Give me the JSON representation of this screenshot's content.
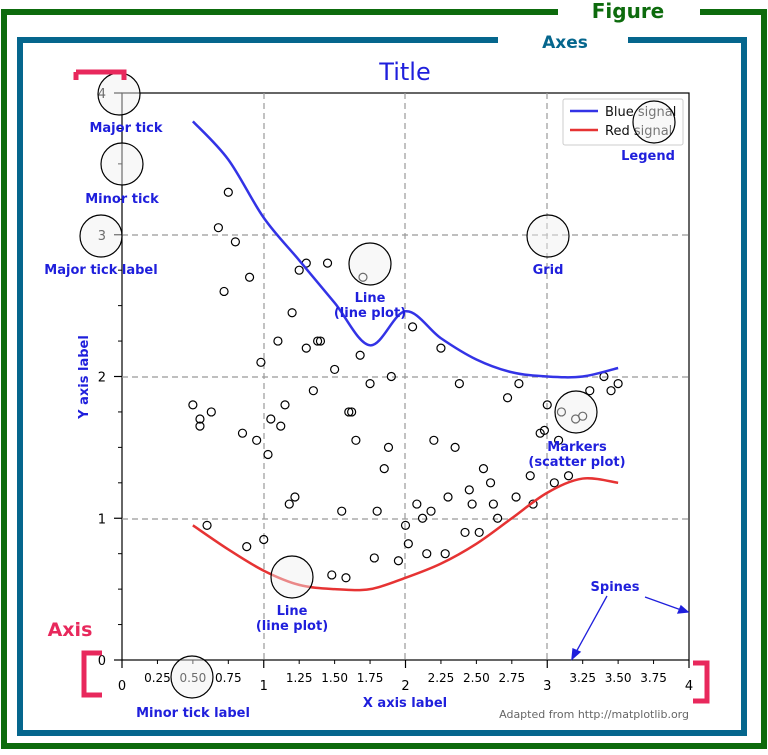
{
  "figure_label": "Figure",
  "axes_label": "Axes",
  "title": "Title",
  "colors": {
    "figure": "#0d6b0d",
    "axes": "#05668d",
    "annot": "#1f1fdc",
    "axis": "#e8285c",
    "blue_line": "#3333e6",
    "red_line": "#e63333"
  },
  "legend": {
    "items": [
      "Blue signal",
      "Red signal"
    ]
  },
  "annotations": {
    "major_tick": "Major tick",
    "minor_tick": "Minor tick",
    "major_tick_label": "Major tick label",
    "minor_tick_label": "Minor tick label",
    "grid": "Grid",
    "legend": "Legend",
    "line_plot_1": "Line",
    "line_plot_2": "(line plot)",
    "markers_1": "Markers",
    "markers_2": "(scatter plot)",
    "spines": "Spines",
    "y_axis_label": "Y axis label",
    "x_axis_label": "X axis label",
    "axis": "Axis",
    "credit": "Adapted from http://matplotlib.org"
  },
  "chart_data": {
    "type": "line",
    "xlim": [
      0,
      4
    ],
    "ylim": [
      0,
      4
    ],
    "x_major_ticks": [
      "0",
      "1",
      "2",
      "3",
      "4"
    ],
    "x_minor_ticks": [
      "0.25",
      "0.50",
      "0.75",
      "1.25",
      "1.50",
      "1.75",
      "2.25",
      "2.50",
      "2.75",
      "3.25",
      "3.50",
      "3.75"
    ],
    "y_major_ticks": [
      "0",
      "1",
      "2",
      "3",
      "4"
    ],
    "grid": true,
    "legend_position": "top-right",
    "series": [
      {
        "name": "Blue signal",
        "x": [
          0.5,
          0.75,
          1.0,
          1.25,
          1.5,
          1.75,
          2.0,
          2.25,
          2.5,
          2.75,
          3.0,
          3.25,
          3.5
        ],
        "y": [
          3.8,
          3.53,
          3.12,
          2.82,
          2.52,
          2.22,
          2.46,
          2.27,
          2.12,
          2.03,
          2.0,
          2.0,
          2.06
        ]
      },
      {
        "name": "Red signal",
        "x": [
          0.5,
          0.75,
          1.0,
          1.25,
          1.5,
          1.75,
          2.0,
          2.25,
          2.5,
          2.75,
          3.0,
          3.25,
          3.5
        ],
        "y": [
          0.95,
          0.78,
          0.63,
          0.53,
          0.5,
          0.5,
          0.58,
          0.68,
          0.82,
          1.0,
          1.18,
          1.28,
          1.25
        ]
      }
    ],
    "scatter": {
      "x": [
        0.5,
        0.55,
        0.63,
        0.75,
        0.8,
        0.9,
        0.98,
        1.03,
        1.1,
        1.18,
        1.2,
        1.25,
        1.3,
        1.35,
        1.38,
        1.45,
        1.5,
        1.55,
        1.6,
        1.65,
        1.7,
        1.75,
        1.8,
        1.85,
        1.9,
        1.95,
        2.0,
        2.05,
        2.12,
        2.2,
        2.25,
        2.3,
        2.35,
        2.42,
        2.47,
        2.55,
        2.6,
        2.65,
        2.72,
        2.8,
        2.88,
        2.95,
        3.0,
        3.1,
        3.2,
        3.3,
        3.4,
        3.5,
        0.68,
        0.72,
        0.85,
        0.95,
        1.05,
        1.15,
        1.22,
        1.4,
        1.48,
        1.58,
        1.68,
        1.78,
        1.88,
        2.02,
        2.15,
        2.28,
        2.38,
        2.52,
        2.62,
        2.78,
        2.9,
        3.05,
        3.15,
        3.25,
        3.45,
        0.55,
        0.6,
        0.88,
        1.0,
        1.12,
        1.3,
        1.62,
        2.08,
        2.18,
        2.45,
        2.98,
        3.08
      ],
      "y": [
        1.8,
        1.7,
        1.75,
        3.3,
        2.95,
        2.7,
        2.1,
        1.45,
        2.25,
        1.1,
        2.45,
        2.75,
        2.8,
        1.9,
        2.25,
        2.8,
        2.05,
        1.05,
        1.75,
        1.55,
        2.7,
        1.95,
        1.05,
        1.35,
        2.0,
        0.7,
        0.95,
        2.35,
        1.0,
        1.55,
        2.2,
        1.15,
        1.5,
        0.9,
        1.1,
        1.35,
        1.25,
        1.0,
        1.85,
        1.95,
        1.3,
        1.6,
        1.8,
        1.75,
        1.7,
        1.9,
        2.0,
        1.95,
        3.05,
        2.6,
        1.6,
        1.55,
        1.7,
        1.8,
        1.15,
        2.25,
        0.6,
        0.58,
        2.15,
        0.72,
        1.5,
        0.82,
        0.75,
        0.75,
        1.95,
        0.9,
        1.1,
        1.15,
        1.1,
        1.25,
        1.3,
        1.72,
        1.9,
        1.65,
        0.95,
        0.8,
        0.85,
        1.65,
        2.2,
        1.75,
        1.1,
        1.05,
        1.2,
        1.62,
        1.55
      ]
    }
  }
}
